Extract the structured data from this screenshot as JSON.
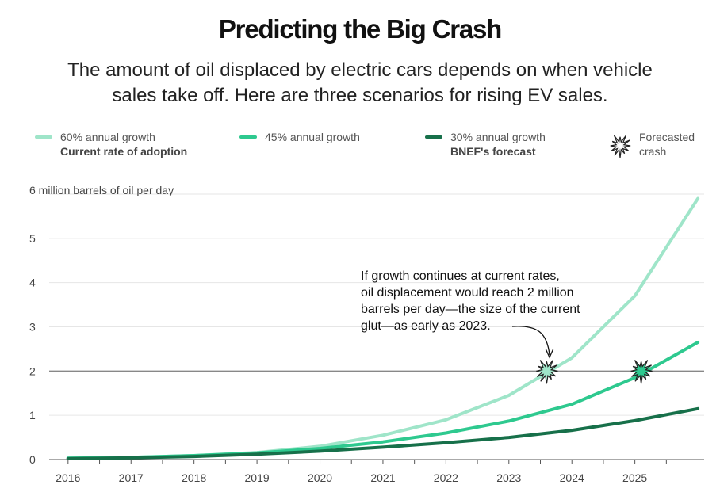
{
  "header": {
    "title": "Predicting the Big Crash",
    "subtitle_line1": "The amount of oil displaced by electric cars depends on when vehicle",
    "subtitle_line2": "sales take off. Here are three scenarios for rising EV sales."
  },
  "legend": {
    "s60_label": "60% annual growth",
    "s60_sub": "Current rate of adoption",
    "s45_label": "45% annual growth",
    "s30_label": "30% annual growth",
    "s30_sub": "BNEF's forecast",
    "crash_line1": "Forecasted",
    "crash_line2": "crash"
  },
  "colors": {
    "s60": "#9fe5c9",
    "s45": "#2ec98f",
    "s30": "#17704a",
    "reference_line": "#888888",
    "grid": "#e6e6e6"
  },
  "annotation": {
    "lines": [
      "If growth continues at current rates,",
      "oil displacement would reach 2 million",
      "barrels per day—the size of the current",
      "glut—as early as 2023."
    ]
  },
  "chart_data": {
    "type": "line",
    "title": "Predicting the Big Crash",
    "ylabel": "6 million barrels of oil per day",
    "xlim": [
      2015.7,
      2026.1
    ],
    "ylim": [
      0,
      6
    ],
    "x_ticks": [
      "2016",
      "2017",
      "2018",
      "2019",
      "2020",
      "2021",
      "2022",
      "2023",
      "2024",
      "2025"
    ],
    "y_ticks": [
      "0",
      "1",
      "2",
      "3",
      "4",
      "5",
      "6 million barrels of oil per day"
    ],
    "reference_line": 2,
    "series": [
      {
        "name": "60% annual growth",
        "color_key": "s60",
        "x": [
          2016,
          2017,
          2018,
          2019,
          2020,
          2021,
          2022,
          2023,
          2024,
          2025,
          2026
        ],
        "y": [
          0.03,
          0.05,
          0.09,
          0.16,
          0.3,
          0.55,
          0.9,
          1.45,
          2.3,
          3.7,
          5.9
        ]
      },
      {
        "name": "45% annual growth",
        "color_key": "s45",
        "x": [
          2016,
          2017,
          2018,
          2019,
          2020,
          2021,
          2022,
          2023,
          2024,
          2025,
          2026
        ],
        "y": [
          0.03,
          0.05,
          0.09,
          0.15,
          0.25,
          0.4,
          0.6,
          0.87,
          1.25,
          1.85,
          2.65
        ]
      },
      {
        "name": "30% annual growth",
        "color_key": "s30",
        "x": [
          2016,
          2017,
          2018,
          2019,
          2020,
          2021,
          2022,
          2023,
          2024,
          2025,
          2026
        ],
        "y": [
          0.02,
          0.04,
          0.07,
          0.12,
          0.19,
          0.28,
          0.38,
          0.5,
          0.66,
          0.88,
          1.15
        ]
      }
    ],
    "crash_markers": [
      {
        "series": "60% annual growth",
        "x": 2023.6,
        "y": 2
      },
      {
        "series": "45% annual growth",
        "x": 2025.1,
        "y": 2
      }
    ]
  }
}
